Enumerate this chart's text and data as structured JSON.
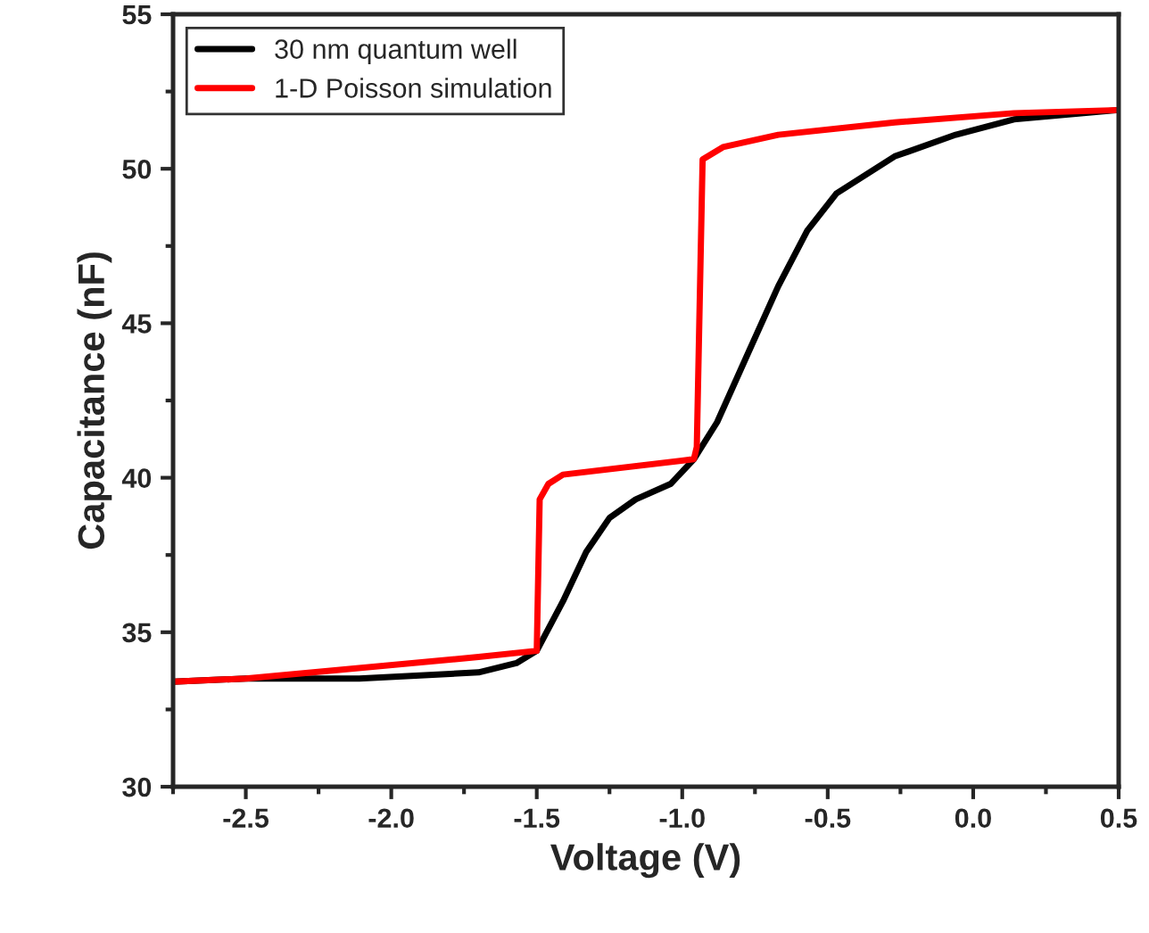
{
  "chart_data": {
    "type": "line",
    "xlabel": "Voltage (V)",
    "ylabel": "Capacitance (nF)",
    "xlim": [
      -2.75,
      0.5
    ],
    "ylim": [
      30,
      55
    ],
    "xticks": [
      -2.5,
      {
        "value": -2,
        "label": "-2.0"
      },
      -1.5,
      {
        "value": -1,
        "label": "-1.0"
      },
      -0.5,
      {
        "value": 0,
        "label": "0.0"
      },
      0.5
    ],
    "yticks": [
      30,
      35,
      40,
      45,
      50,
      55
    ],
    "grid": false,
    "legend": "top left",
    "marker": "none",
    "line_style": "solid",
    "series": [
      {
        "name": "30 nm quantum well",
        "color": "#000000",
        "x": [
          -2.75,
          -2.5,
          -2.11,
          -1.7,
          -1.57,
          -1.5,
          -1.41,
          -1.33,
          -1.25,
          -1.16,
          -1.04,
          -0.96,
          -0.88,
          -0.78,
          -0.67,
          -0.57,
          -0.47,
          -0.27,
          -0.06,
          0.14,
          0.5
        ],
        "values": [
          33.4,
          33.5,
          33.5,
          33.7,
          34.0,
          34.4,
          36.0,
          37.6,
          38.7,
          39.3,
          39.8,
          40.6,
          41.8,
          43.9,
          46.2,
          48.0,
          49.2,
          50.4,
          51.1,
          51.6,
          51.9
        ]
      },
      {
        "name": "1-D Poisson simulation",
        "color": "#ff0000",
        "x": [
          -2.75,
          -2.5,
          -1.7,
          -1.5,
          -1.49,
          -1.46,
          -1.41,
          -0.96,
          -0.95,
          -0.93,
          -0.86,
          -0.67,
          -0.27,
          0.14,
          0.5
        ],
        "values": [
          33.4,
          33.5,
          34.2,
          34.4,
          39.3,
          39.8,
          40.1,
          40.6,
          41.0,
          50.3,
          50.7,
          51.1,
          51.5,
          51.8,
          51.9
        ]
      }
    ]
  }
}
